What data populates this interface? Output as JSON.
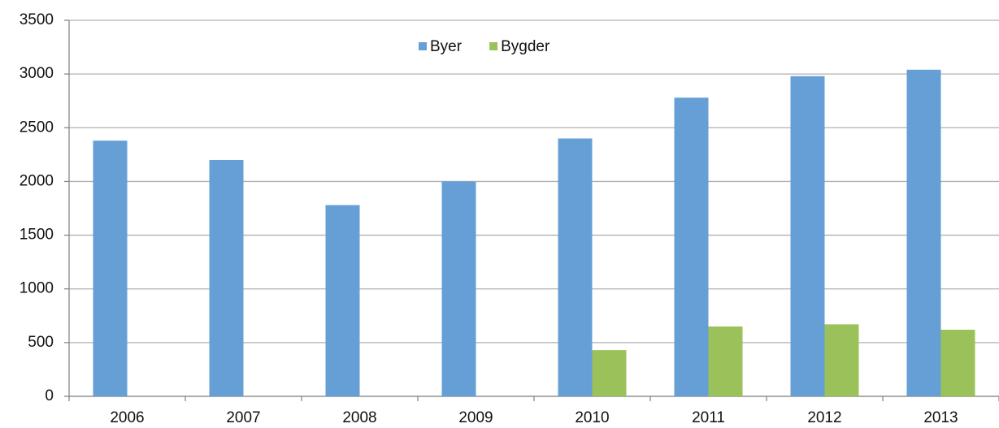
{
  "chart_data": {
    "type": "bar",
    "categories": [
      "2006",
      "2007",
      "2008",
      "2009",
      "2010",
      "2011",
      "2012",
      "2013"
    ],
    "series": [
      {
        "name": "Byer",
        "color": "#659fd6",
        "values": [
          2380,
          2200,
          1780,
          2000,
          2400,
          2780,
          2980,
          3040
        ]
      },
      {
        "name": "Bygder",
        "color": "#9bc25a",
        "values": [
          null,
          null,
          null,
          null,
          430,
          650,
          670,
          620
        ]
      }
    ],
    "ylim": [
      0,
      3500
    ],
    "yticks": [
      0,
      500,
      1000,
      1500,
      2000,
      2500,
      3000,
      3500
    ],
    "grid": true,
    "legend": "top"
  }
}
